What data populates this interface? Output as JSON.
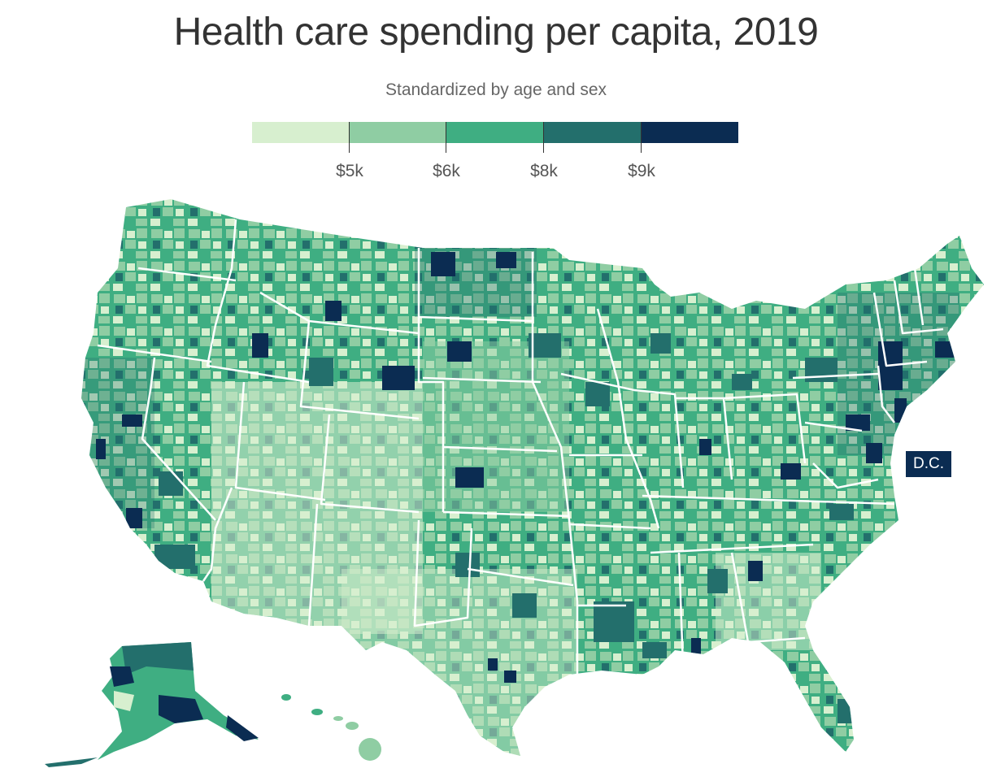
{
  "title": "Health care spending per capita, 2019",
  "subtitle": "Standardized by age and sex",
  "legend": {
    "colors": [
      "#d7efcf",
      "#8fcda3",
      "#3fae82",
      "#236f6c",
      "#0b2c52"
    ],
    "thresholds": [
      {
        "label": "$5k",
        "value": 5000
      },
      {
        "label": "$6k",
        "value": 6000
      },
      {
        "label": "$8k",
        "value": 8000
      },
      {
        "label": "$9k",
        "value": 9000
      }
    ]
  },
  "callout": {
    "dc_label": "D.C."
  },
  "map": {
    "type": "county choropleth",
    "region": "United States",
    "land_color": "#3fae82",
    "border_color": "#ffffff"
  }
}
